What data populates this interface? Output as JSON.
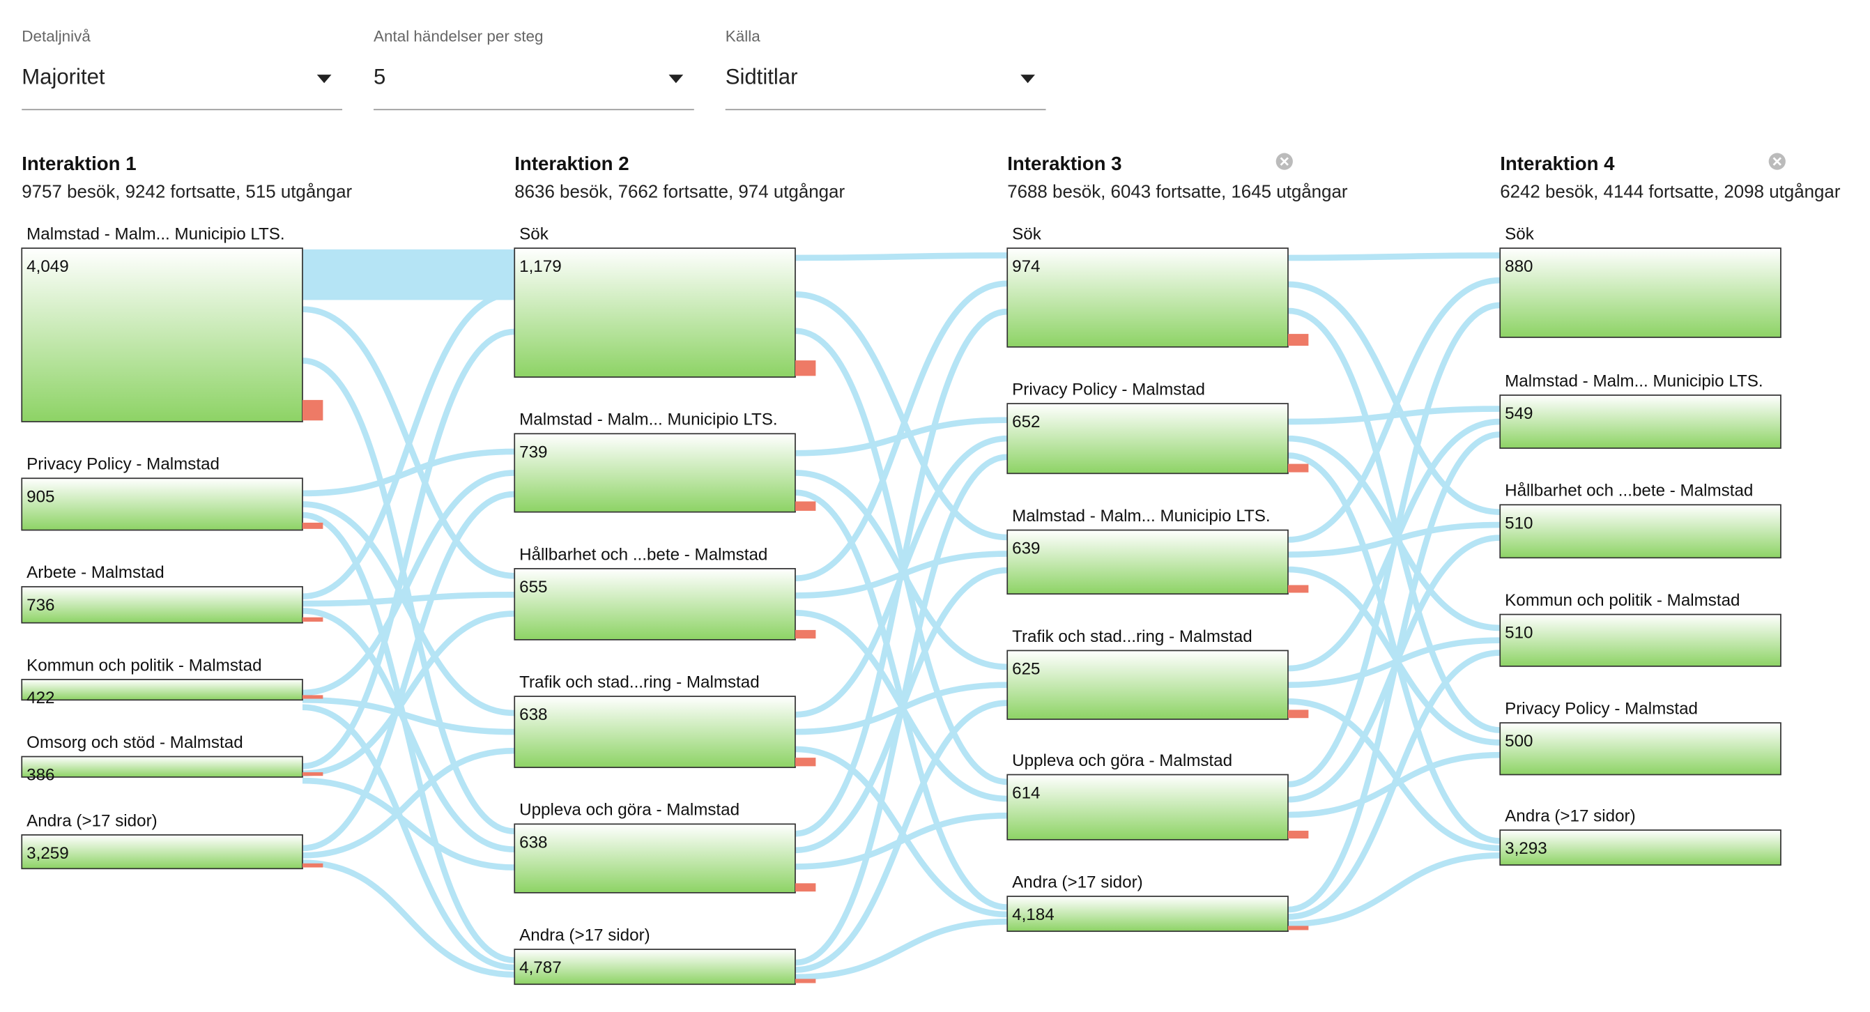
{
  "controls": [
    {
      "label": "Detaljnivå",
      "value": "Majoritet"
    },
    {
      "label": "Antal händelser per steg",
      "value": "5"
    },
    {
      "label": "Källa",
      "value": "Sidtitlar"
    }
  ],
  "columns": [
    {
      "title": "Interaktion 1",
      "summary": "9757 besök, 9242 fortsatte, 515 utgångar",
      "nodes": [
        {
          "label": "Malmstad - Malm... Municipio LTS.",
          "value": "4,049"
        },
        {
          "label": "Privacy Policy - Malmstad",
          "value": "905"
        },
        {
          "label": "Arbete - Malmstad",
          "value": "736"
        },
        {
          "label": "Kommun och politik - Malmstad",
          "value": "422"
        },
        {
          "label": "Omsorg och stöd - Malmstad",
          "value": "386"
        },
        {
          "label": "Andra (>17 sidor)",
          "value": "3,259"
        }
      ]
    },
    {
      "title": "Interaktion 2",
      "summary": "8636 besök, 7662 fortsatte, 974 utgångar",
      "nodes": [
        {
          "label": "Sök",
          "value": "1,179"
        },
        {
          "label": "Malmstad - Malm... Municipio LTS.",
          "value": "739"
        },
        {
          "label": "Hållbarhet och ...bete - Malmstad",
          "value": "655"
        },
        {
          "label": "Trafik och stad...ring - Malmstad",
          "value": "638"
        },
        {
          "label": "Uppleva och göra - Malmstad",
          "value": "638"
        },
        {
          "label": "Andra (>17 sidor)",
          "value": "4,787"
        }
      ]
    },
    {
      "title": "Interaktion 3",
      "summary": "7688 besök, 6043 fortsatte, 1645 utgångar",
      "nodes": [
        {
          "label": "Sök",
          "value": "974"
        },
        {
          "label": "Privacy Policy - Malmstad",
          "value": "652"
        },
        {
          "label": "Malmstad - Malm... Municipio LTS.",
          "value": "639"
        },
        {
          "label": "Trafik och stad...ring - Malmstad",
          "value": "625"
        },
        {
          "label": "Uppleva och göra - Malmstad",
          "value": "614"
        },
        {
          "label": "Andra (>17 sidor)",
          "value": "4,184"
        }
      ]
    },
    {
      "title": "Interaktion 4",
      "summary": "6242 besök, 4144 fortsatte, 2098 utgångar",
      "nodes": [
        {
          "label": "Sök",
          "value": "880"
        },
        {
          "label": "Malmstad - Malm... Municipio LTS.",
          "value": "549"
        },
        {
          "label": "Hållbarhet och ...bete - Malmstad",
          "value": "510"
        },
        {
          "label": "Kommun och politik - Malmstad",
          "value": "510"
        },
        {
          "label": "Privacy Policy - Malmstad",
          "value": "500"
        },
        {
          "label": "Andra (>17 sidor)",
          "value": "3,293"
        }
      ]
    }
  ]
}
